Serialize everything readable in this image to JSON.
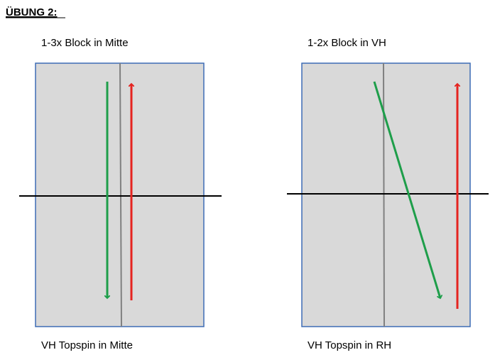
{
  "title": "ÜBUNG 2:",
  "panels": [
    {
      "top_label": "1-3x Block in Mitte",
      "bottom_label": "VH Topspin in Mitte"
    },
    {
      "top_label": "1-2x Block in VH",
      "bottom_label": "VH Topspin in RH"
    }
  ]
}
